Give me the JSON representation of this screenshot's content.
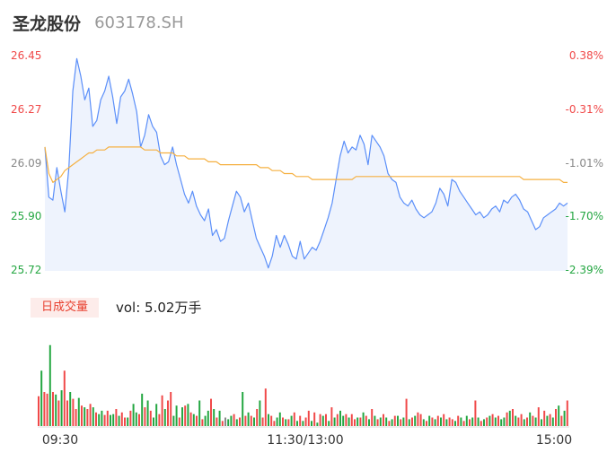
{
  "header": {
    "name": "圣龙股份",
    "code": "603178.SH"
  },
  "colors": {
    "price": "#5b8ff9",
    "avg": "#f5b041",
    "up": "#f04848",
    "down": "#23a641",
    "neutral": "#888888",
    "fill": "#eef3fd"
  },
  "volume_panel": {
    "tag": "日成交量",
    "label": "vol: 5.02万手"
  },
  "chart_data": [
    {
      "type": "line",
      "title": "",
      "ylim": [
        25.72,
        26.45
      ],
      "y_ticks": [
        "26.45",
        "26.27",
        "26.09",
        "25.90",
        "25.72"
      ],
      "y_pct_ticks": [
        "0.38%",
        "-0.31%",
        "-1.01%",
        "-1.70%",
        "-2.39%"
      ],
      "x_ticks": [
        "09:30",
        "11:30/13:00",
        "15:00"
      ],
      "series": [
        {
          "values": [
            26.14,
            25.97,
            25.96,
            26.07,
            25.99,
            25.92,
            26.07,
            26.33,
            26.44,
            26.38,
            26.3,
            26.34,
            26.21,
            26.23,
            26.3,
            26.33,
            26.38,
            26.31,
            26.22,
            26.31,
            26.33,
            26.37,
            26.32,
            26.26,
            26.14,
            26.18,
            26.25,
            26.21,
            26.19,
            26.11,
            26.08,
            26.09,
            26.14,
            26.08,
            26.03,
            25.98,
            25.95,
            25.99,
            25.94,
            25.91,
            25.89,
            25.93,
            25.84,
            25.86,
            25.82,
            25.83,
            25.89,
            25.94,
            25.99,
            25.97,
            25.92,
            25.95,
            25.89,
            25.83,
            25.8,
            25.77,
            25.73,
            25.77,
            25.84,
            25.8,
            25.84,
            25.81,
            25.77,
            25.76,
            25.82,
            25.76,
            25.78,
            25.8,
            25.79,
            25.82,
            25.86,
            25.9,
            25.95,
            26.03,
            26.11,
            26.16,
            26.12,
            26.14,
            26.13,
            26.18,
            26.15,
            26.08,
            26.18,
            26.16,
            26.14,
            26.11,
            26.05,
            26.03,
            26.02,
            25.97,
            25.95,
            25.94,
            25.96,
            25.93,
            25.91,
            25.9,
            25.91,
            25.92,
            25.95,
            26.0,
            25.98,
            25.94,
            26.03,
            26.02,
            25.99,
            25.97,
            25.95,
            25.93,
            25.91,
            25.92,
            25.9,
            25.91,
            25.93,
            25.94,
            25.92,
            25.96,
            25.95,
            25.97,
            25.98,
            25.96,
            25.93,
            25.92,
            25.89,
            25.86,
            25.87,
            25.9,
            25.91,
            25.92,
            25.93,
            25.95,
            25.94,
            25.95
          ]
        },
        {
          "values": [
            26.14,
            26.05,
            26.02,
            26.03,
            26.04,
            26.06,
            26.07,
            26.08,
            26.09,
            26.1,
            26.11,
            26.12,
            26.12,
            26.13,
            26.13,
            26.13,
            26.14,
            26.14,
            26.14,
            26.14,
            26.14,
            26.14,
            26.14,
            26.14,
            26.14,
            26.13,
            26.13,
            26.13,
            26.13,
            26.12,
            26.12,
            26.12,
            26.12,
            26.11,
            26.11,
            26.11,
            26.1,
            26.1,
            26.1,
            26.1,
            26.1,
            26.09,
            26.09,
            26.09,
            26.08,
            26.08,
            26.08,
            26.08,
            26.08,
            26.08,
            26.08,
            26.08,
            26.08,
            26.08,
            26.07,
            26.07,
            26.07,
            26.06,
            26.06,
            26.06,
            26.05,
            26.05,
            26.05,
            26.04,
            26.04,
            26.04,
            26.04,
            26.03,
            26.03,
            26.03,
            26.03,
            26.03,
            26.03,
            26.03,
            26.03,
            26.03,
            26.03,
            26.03,
            26.04,
            26.04,
            26.04,
            26.04,
            26.04,
            26.04,
            26.04,
            26.04,
            26.04,
            26.04,
            26.04,
            26.04,
            26.04,
            26.04,
            26.04,
            26.04,
            26.04,
            26.04,
            26.04,
            26.04,
            26.04,
            26.04,
            26.04,
            26.04,
            26.04,
            26.04,
            26.04,
            26.04,
            26.04,
            26.04,
            26.04,
            26.04,
            26.04,
            26.04,
            26.04,
            26.04,
            26.04,
            26.04,
            26.04,
            26.04,
            26.04,
            26.04,
            26.03,
            26.03,
            26.03,
            26.03,
            26.03,
            26.03,
            26.03,
            26.03,
            26.03,
            26.03,
            26.02,
            26.02
          ]
        }
      ]
    },
    {
      "type": "bar",
      "title": "",
      "ylim": [
        0,
        100
      ],
      "values": [
        35,
        65,
        40,
        38,
        95,
        40,
        37,
        30,
        42,
        65,
        30,
        40,
        32,
        20,
        33,
        24,
        22,
        20,
        26,
        22,
        16,
        14,
        18,
        13,
        18,
        13,
        14,
        20,
        12,
        16,
        10,
        10,
        18,
        26,
        16,
        14,
        38,
        22,
        30,
        18,
        10,
        26,
        14,
        36,
        20,
        30,
        40,
        12,
        24,
        10,
        22,
        24,
        26,
        16,
        14,
        12,
        30,
        8,
        12,
        18,
        32,
        20,
        10,
        18,
        6,
        10,
        8,
        12,
        14,
        8,
        10,
        40,
        12,
        16,
        12,
        10,
        20,
        30,
        10,
        44,
        14,
        12,
        6,
        10,
        16,
        10,
        8,
        8,
        12,
        16,
        6,
        12,
        6,
        10,
        18,
        6,
        16,
        4,
        14,
        12,
        14,
        6,
        22,
        10,
        14,
        18,
        12,
        14,
        10,
        14,
        8,
        10,
        10,
        16,
        12,
        8,
        20,
        12,
        8,
        10,
        14,
        10,
        6,
        8,
        12,
        12,
        8,
        10,
        32,
        8,
        10,
        12,
        16,
        14,
        8,
        6,
        12,
        10,
        8,
        12,
        10,
        14,
        8,
        10,
        8,
        6,
        12,
        10,
        6,
        12,
        8,
        10,
        30,
        10,
        6,
        8,
        10,
        12,
        14,
        10,
        12,
        8,
        10,
        16,
        18,
        20,
        12,
        10,
        14,
        8,
        10,
        16,
        12,
        10,
        22,
        8,
        18,
        12,
        14,
        10,
        20,
        24,
        12,
        18,
        30
      ],
      "directions": [
        "u",
        "d",
        "u",
        "u",
        "d",
        "u",
        "d",
        "u",
        "d",
        "u",
        "u",
        "d",
        "u",
        "u",
        "d",
        "u",
        "d",
        "u",
        "u",
        "d",
        "u",
        "d",
        "d",
        "u",
        "u",
        "d",
        "d",
        "u",
        "d",
        "u",
        "u",
        "d",
        "u",
        "d",
        "d",
        "u",
        "d",
        "u",
        "d",
        "u",
        "d",
        "d",
        "u",
        "u",
        "d",
        "u",
        "u",
        "d",
        "d",
        "u",
        "d",
        "u",
        "d",
        "u",
        "d",
        "u",
        "d",
        "u",
        "d",
        "d",
        "u",
        "d",
        "u",
        "d",
        "u",
        "n",
        "d",
        "d",
        "u",
        "d",
        "u",
        "d",
        "u",
        "d",
        "u",
        "d",
        "u",
        "d",
        "u",
        "u",
        "d",
        "u",
        "u",
        "d",
        "d",
        "u",
        "d",
        "u",
        "d",
        "u",
        "d",
        "u",
        "d",
        "u",
        "u",
        "d",
        "u",
        "d",
        "u",
        "d",
        "u",
        "d",
        "u",
        "d",
        "u",
        "d",
        "d",
        "u",
        "d",
        "u",
        "u",
        "d",
        "u",
        "d",
        "u",
        "d",
        "u",
        "d",
        "u",
        "d",
        "u",
        "d",
        "u",
        "d",
        "u",
        "d",
        "u",
        "d",
        "u",
        "d",
        "u",
        "d",
        "u",
        "u",
        "d",
        "u",
        "d",
        "u",
        "d",
        "u",
        "d",
        "u",
        "d",
        "u",
        "u",
        "d",
        "u",
        "d",
        "u",
        "d",
        "u",
        "d",
        "u",
        "d",
        "u",
        "d",
        "u",
        "d",
        "u",
        "d",
        "u",
        "d",
        "d",
        "u",
        "d",
        "u",
        "d",
        "u",
        "u",
        "d",
        "u",
        "d",
        "u",
        "d",
        "u",
        "d",
        "u",
        "d",
        "u",
        "d",
        "u",
        "d",
        "u",
        "d",
        "u",
        "n"
      ]
    }
  ]
}
